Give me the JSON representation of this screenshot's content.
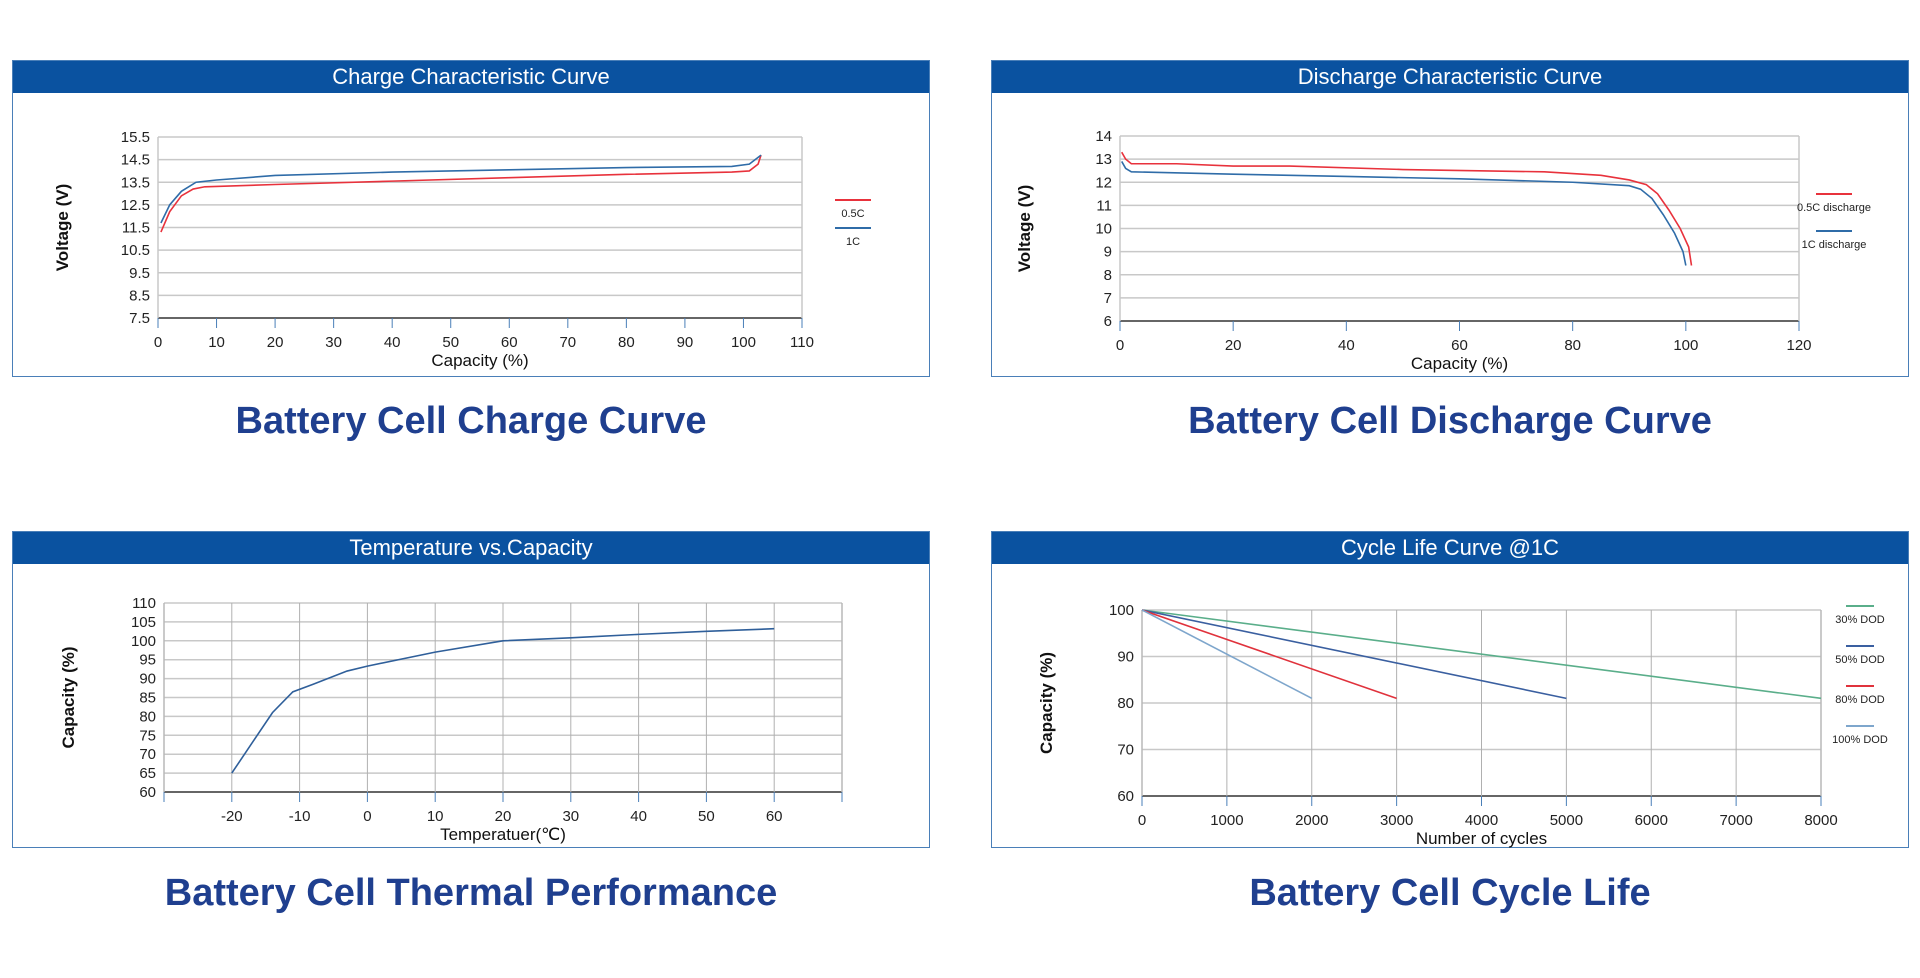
{
  "colors": {
    "header": "#0a52a0",
    "caption": "#1f3f8f",
    "grid": "#c8c8c8",
    "axis": "#333333"
  },
  "captions": [
    "Battery Cell Charge Curve",
    "Battery Cell Discharge Curve",
    "Battery Cell Thermal Performance",
    "Battery Cell Cycle Life"
  ],
  "chart_data": [
    {
      "type": "line",
      "title": "Charge Characteristic Curve",
      "xlabel": "Capacity (%)",
      "ylabel": "Voltage (V)",
      "xlim": [
        0,
        110
      ],
      "ylim": [
        7.5,
        15.5
      ],
      "xticks": [
        0,
        10,
        20,
        30,
        40,
        50,
        60,
        70,
        80,
        90,
        100,
        110
      ],
      "yticks": [
        7.5,
        8.5,
        9.5,
        10.5,
        11.5,
        12.5,
        13.5,
        14.5,
        15.5
      ],
      "grid": "horizontal",
      "legend": "right",
      "series": [
        {
          "name": "0.5C",
          "color": "#e8323c",
          "points": [
            [
              0.5,
              11.3
            ],
            [
              2,
              12.2
            ],
            [
              4,
              12.9
            ],
            [
              6,
              13.2
            ],
            [
              8,
              13.3
            ],
            [
              20,
              13.4
            ],
            [
              40,
              13.55
            ],
            [
              60,
              13.7
            ],
            [
              80,
              13.85
            ],
            [
              98,
              13.95
            ],
            [
              101,
              14.0
            ],
            [
              102.5,
              14.3
            ],
            [
              103,
              14.7
            ]
          ]
        },
        {
          "name": "1C",
          "color": "#2f6ca8",
          "points": [
            [
              0.5,
              11.7
            ],
            [
              2,
              12.5
            ],
            [
              4,
              13.1
            ],
            [
              6.5,
              13.5
            ],
            [
              10,
              13.6
            ],
            [
              20,
              13.8
            ],
            [
              40,
              13.95
            ],
            [
              60,
              14.05
            ],
            [
              80,
              14.15
            ],
            [
              98,
              14.2
            ],
            [
              101,
              14.3
            ],
            [
              102.5,
              14.6
            ],
            [
              103,
              14.7
            ]
          ]
        }
      ]
    },
    {
      "type": "line",
      "title": "Discharge Characteristic Curve",
      "xlabel": "Capacity (%)",
      "ylabel": "Voltage (V)",
      "xlim": [
        0,
        120
      ],
      "ylim": [
        6,
        14
      ],
      "xticks": [
        0,
        20,
        40,
        60,
        80,
        100,
        120
      ],
      "yticks": [
        6,
        7,
        8,
        9,
        10,
        11,
        12,
        13,
        14
      ],
      "grid": "horizontal",
      "legend": "right",
      "series": [
        {
          "name": "0.5C discharge",
          "color": "#e8323c",
          "points": [
            [
              0.3,
              13.3
            ],
            [
              1,
              13.0
            ],
            [
              2,
              12.8
            ],
            [
              10,
              12.8
            ],
            [
              20,
              12.7
            ],
            [
              30,
              12.7
            ],
            [
              50,
              12.55
            ],
            [
              75,
              12.45
            ],
            [
              85,
              12.3
            ],
            [
              90,
              12.1
            ],
            [
              93,
              11.9
            ],
            [
              95,
              11.5
            ],
            [
              97,
              10.8
            ],
            [
              99,
              10.0
            ],
            [
              100.5,
              9.2
            ],
            [
              101,
              8.4
            ]
          ]
        },
        {
          "name": "1C discharge",
          "color": "#2f6ca8",
          "points": [
            [
              0.3,
              12.9
            ],
            [
              1,
              12.6
            ],
            [
              2,
              12.45
            ],
            [
              20,
              12.35
            ],
            [
              40,
              12.25
            ],
            [
              60,
              12.15
            ],
            [
              80,
              12.0
            ],
            [
              90,
              11.85
            ],
            [
              92,
              11.7
            ],
            [
              94,
              11.3
            ],
            [
              96,
              10.6
            ],
            [
              98,
              9.8
            ],
            [
              99.5,
              9.0
            ],
            [
              100,
              8.4
            ]
          ]
        }
      ]
    },
    {
      "type": "line",
      "title": "Temperature vs.Capacity",
      "xlabel": "Temperatuer(℃)",
      "ylabel": "Capacity (%)",
      "xlim": [
        -30,
        70
      ],
      "ylim": [
        60,
        110
      ],
      "xticks": [
        -20,
        -10,
        0,
        10,
        20,
        30,
        40,
        50,
        60
      ],
      "yticks": [
        60,
        65,
        70,
        75,
        80,
        85,
        90,
        95,
        100,
        105,
        110
      ],
      "grid": "both",
      "legend": "none",
      "series": [
        {
          "color": "#2f5f9a",
          "points": [
            [
              -20,
              65
            ],
            [
              -17,
              73
            ],
            [
              -14,
              81
            ],
            [
              -11,
              86.5
            ],
            [
              -8,
              88.5
            ],
            [
              -3,
              92
            ],
            [
              0,
              93.3
            ],
            [
              10,
              97
            ],
            [
              20,
              100
            ],
            [
              30,
              100.8
            ],
            [
              40,
              101.7
            ],
            [
              50,
              102.5
            ],
            [
              60,
              103.2
            ]
          ]
        }
      ]
    },
    {
      "type": "line",
      "title": "Cycle Life Curve @1C",
      "xlabel": "Number of cycles",
      "ylabel": "Capacity (%)",
      "xlim": [
        0,
        8000
      ],
      "ylim": [
        60,
        100
      ],
      "xticks": [
        0,
        1000,
        2000,
        3000,
        4000,
        5000,
        6000,
        7000,
        8000
      ],
      "yticks": [
        60,
        70,
        80,
        90,
        100
      ],
      "grid": "both",
      "legend": "right",
      "series": [
        {
          "name": "30% DOD",
          "color": "#5aae8a",
          "points": [
            [
              0,
              100
            ],
            [
              8000,
              81
            ]
          ]
        },
        {
          "name": "50% DOD",
          "color": "#3a5fa0",
          "points": [
            [
              0,
              100
            ],
            [
              5000,
              81
            ]
          ]
        },
        {
          "name": "80% DOD",
          "color": "#e0323c",
          "points": [
            [
              0,
              100
            ],
            [
              3000,
              81
            ]
          ]
        },
        {
          "name": "100% DOD",
          "color": "#7ea6cc",
          "points": [
            [
              0,
              100
            ],
            [
              2000,
              81
            ]
          ]
        }
      ]
    }
  ]
}
